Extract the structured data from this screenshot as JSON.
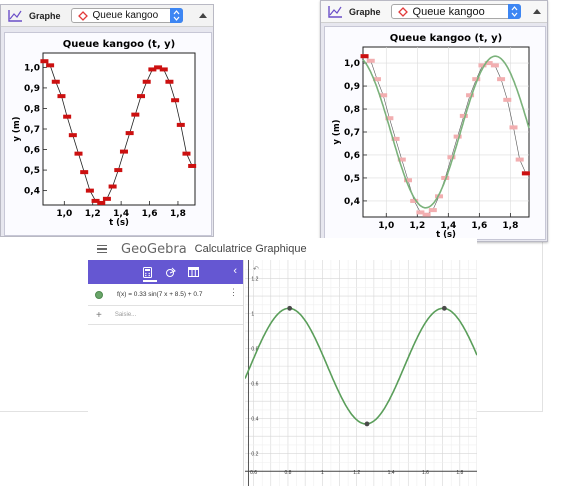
{
  "graph_label": "Graphe",
  "dataset_name": "Queue kangoo",
  "icons": {
    "graph": "graph-icon",
    "diamond": "diamond-icon",
    "collapse": "collapse-up-icon"
  },
  "left_chart": {
    "chart_data": {
      "type": "scatter",
      "title": "Queue kangoo (t, y)",
      "xlabel": "t (s)",
      "ylabel": "y (m)",
      "xlim": [
        0.85,
        1.92
      ],
      "ylim": [
        0.33,
        1.07
      ],
      "xticks": [
        "1,0",
        "1,2",
        "1,4",
        "1,6",
        "1,8"
      ],
      "yticks": [
        "0,4",
        "0,5",
        "0,6",
        "0,7",
        "0,8",
        "0,9",
        "1,0"
      ],
      "x": [
        0.86,
        0.9,
        0.94,
        0.98,
        1.02,
        1.06,
        1.1,
        1.14,
        1.18,
        1.22,
        1.26,
        1.3,
        1.34,
        1.38,
        1.42,
        1.46,
        1.5,
        1.54,
        1.58,
        1.62,
        1.66,
        1.7,
        1.74,
        1.78,
        1.82,
        1.86,
        1.9
      ],
      "y": [
        1.03,
        1.01,
        0.93,
        0.86,
        0.76,
        0.67,
        0.58,
        0.49,
        0.4,
        0.35,
        0.34,
        0.36,
        0.42,
        0.5,
        0.59,
        0.68,
        0.77,
        0.86,
        0.93,
        0.99,
        1.0,
        0.99,
        0.93,
        0.84,
        0.72,
        0.58,
        0.52
      ]
    }
  },
  "right_chart": {
    "chart_data": {
      "type": "scatter",
      "title": "Queue kangoo (t, y)",
      "xlabel": "t (s)",
      "ylabel": "y (m)",
      "xlim": [
        0.85,
        1.92
      ],
      "ylim": [
        0.33,
        1.07
      ],
      "xticks": [
        "1,0",
        "1,2",
        "1,4",
        "1,6",
        "1,8"
      ],
      "yticks": [
        "0,4",
        "0,5",
        "0,6",
        "0,7",
        "0,8",
        "0,9",
        "1,0"
      ],
      "fit_color": "#7bb27b",
      "point_color": "#f2aeb0"
    }
  },
  "geogebra": {
    "logo": "GeoGebra",
    "app_title": "Calculatrice Graphique",
    "function": "f(x)  =  0.33 sin(7 x + 8.5) + 0.7",
    "input_placeholder": "Saisie...",
    "accent": "#6557d2",
    "curve_color": "#5a9e5a",
    "chart_data": {
      "type": "line",
      "xticks": [
        "0.6",
        "0.8",
        "1",
        "1.2",
        "1.4",
        "1.6",
        "1.8"
      ],
      "yticks": [
        "0.2",
        "0.4",
        "0.6",
        "0.8",
        "1",
        "1.2"
      ],
      "xlim": [
        0.55,
        1.9
      ],
      "ylim": [
        0.13,
        1.26
      ],
      "amplitude": 0.33,
      "omega": 7,
      "phase": 8.5,
      "offset": 0.7,
      "points_shown": [
        [
          0.81,
          1.03
        ],
        [
          1.26,
          0.37
        ],
        [
          1.71,
          1.03
        ]
      ]
    }
  }
}
